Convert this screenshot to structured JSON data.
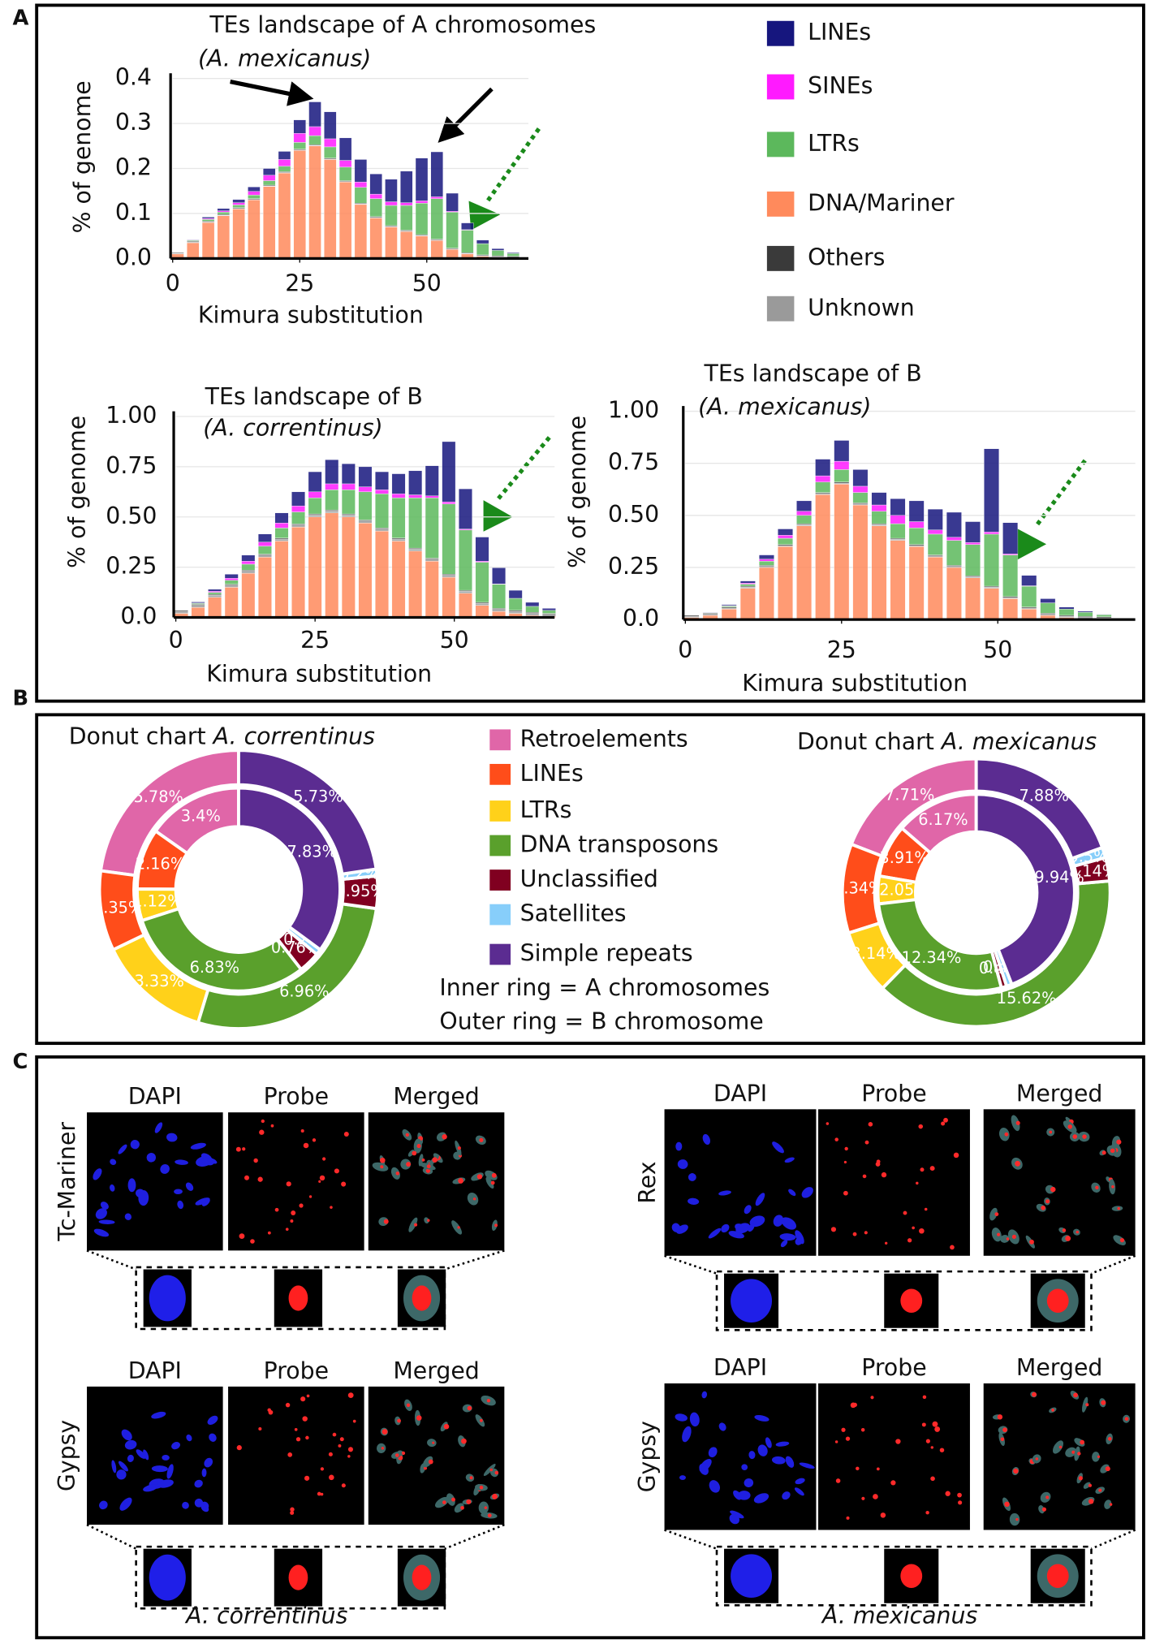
{
  "panels": [
    "A",
    "B",
    "C"
  ],
  "chart_data": [
    {
      "type": "bar",
      "title": "TEs landscape of A chromosomes",
      "subtitle": "(A. mexicanus)",
      "x_label": "Kimura substitution",
      "y_label": "% of genome",
      "x": [
        1,
        4,
        7,
        10,
        13,
        16,
        19,
        22,
        25,
        28,
        31,
        34,
        37,
        40,
        43,
        46,
        49,
        52,
        55,
        58,
        61,
        64,
        67
      ],
      "series": [
        {
          "name": "LINEs",
          "color": "#16167e",
          "values": [
            0,
            0.001,
            0.003,
            0.005,
            0.007,
            0.01,
            0.015,
            0.018,
            0.03,
            0.055,
            0.06,
            0.05,
            0.05,
            0.045,
            0.05,
            0.07,
            0.095,
            0.1,
            0.04,
            0.015,
            0.008,
            0.004,
            0.002
          ]
        },
        {
          "name": "SINEs",
          "color": "#ff1aff",
          "values": [
            0,
            0.001,
            0.002,
            0.003,
            0.005,
            0.008,
            0.012,
            0.015,
            0.02,
            0.02,
            0.018,
            0.015,
            0.012,
            0.01,
            0.008,
            0.006,
            0.005,
            0.004,
            0.002,
            0.001,
            0,
            0,
            0
          ]
        },
        {
          "name": "LTRs",
          "color": "#5cb85c",
          "values": [
            0,
            0.002,
            0.004,
            0.005,
            0.006,
            0.008,
            0.01,
            0.012,
            0.015,
            0.02,
            0.025,
            0.03,
            0.035,
            0.04,
            0.045,
            0.055,
            0.07,
            0.09,
            0.08,
            0.05,
            0.025,
            0.012,
            0.006
          ]
        },
        {
          "name": "DNA/Mariner",
          "color": "#ff8a5c",
          "values": [
            0.01,
            0.035,
            0.08,
            0.095,
            0.11,
            0.13,
            0.16,
            0.19,
            0.24,
            0.25,
            0.22,
            0.17,
            0.12,
            0.09,
            0.07,
            0.06,
            0.05,
            0.04,
            0.02,
            0.01,
            0.005,
            0.003,
            0.002
          ]
        },
        {
          "name": "Others",
          "color": "#3a3a3a",
          "values": [
            0.002,
            0.002,
            0.002,
            0.002,
            0.002,
            0.002,
            0.002,
            0.002,
            0.002,
            0.002,
            0.002,
            0.002,
            0.002,
            0.002,
            0.002,
            0.002,
            0.002,
            0.002,
            0.002,
            0.002,
            0.002,
            0.002,
            0.002
          ]
        },
        {
          "name": "Unknown",
          "color": "#9a9a9a",
          "values": [
            0.001,
            0.001,
            0.001,
            0.001,
            0.001,
            0.001,
            0.001,
            0.001,
            0.001,
            0.001,
            0.001,
            0.001,
            0.001,
            0.001,
            0.001,
            0.001,
            0.001,
            0.001,
            0.001,
            0.001,
            0.001,
            0.001,
            0.001
          ]
        }
      ],
      "xlim": [
        0,
        70
      ],
      "xticks": [
        0,
        25,
        50
      ],
      "ylim": [
        0,
        0.4
      ],
      "yticks": [
        {
          "value": 0,
          "label": "0.0"
        },
        0.1,
        0.2,
        0.3,
        0.4
      ],
      "grid": true
    },
    {
      "type": "bar",
      "title": "TEs landscape of B",
      "subtitle": "(A. correntinus)",
      "x_label": "Kimura substitution",
      "y_label": "% of genome",
      "x": [
        1,
        4,
        7,
        10,
        13,
        16,
        19,
        22,
        25,
        28,
        31,
        34,
        37,
        40,
        43,
        46,
        49,
        52,
        55,
        58,
        61,
        64,
        67
      ],
      "series": [
        {
          "values": [
            0,
            0.005,
            0.01,
            0.02,
            0.03,
            0.04,
            0.05,
            0.07,
            0.1,
            0.12,
            0.1,
            0.1,
            0.09,
            0.1,
            0.12,
            0.15,
            0.3,
            0.2,
            0.12,
            0.08,
            0.04,
            0.02,
            0.01
          ]
        },
        {
          "values": [
            0,
            0.002,
            0.005,
            0.01,
            0.015,
            0.02,
            0.025,
            0.03,
            0.03,
            0.03,
            0.03,
            0.025,
            0.02,
            0.02,
            0.015,
            0.01,
            0.01,
            0.005,
            0.005,
            0.002,
            0,
            0,
            0
          ]
        },
        {
          "values": [
            0,
            0.005,
            0.01,
            0.02,
            0.03,
            0.04,
            0.05,
            0.06,
            0.08,
            0.1,
            0.12,
            0.14,
            0.17,
            0.2,
            0.25,
            0.3,
            0.35,
            0.3,
            0.2,
            0.12,
            0.06,
            0.03,
            0.015
          ]
        },
        {
          "values": [
            0.02,
            0.05,
            0.1,
            0.15,
            0.22,
            0.3,
            0.38,
            0.45,
            0.5,
            0.52,
            0.5,
            0.47,
            0.43,
            0.38,
            0.33,
            0.28,
            0.2,
            0.12,
            0.06,
            0.03,
            0.02,
            0.01,
            0.005
          ]
        },
        {
          "values": [
            0.005,
            0.005,
            0.005,
            0.005,
            0.005,
            0.005,
            0.005,
            0.005,
            0.005,
            0.005,
            0.005,
            0.005,
            0.005,
            0.005,
            0.005,
            0.005,
            0.005,
            0.005,
            0.005,
            0.005,
            0.005,
            0.005,
            0.005
          ]
        },
        {
          "values": [
            0.01,
            0.01,
            0.01,
            0.01,
            0.01,
            0.01,
            0.01,
            0.01,
            0.01,
            0.01,
            0.01,
            0.01,
            0.01,
            0.01,
            0.01,
            0.01,
            0.01,
            0.01,
            0.01,
            0.01,
            0.01,
            0.01,
            0.01
          ]
        }
      ],
      "xlim": [
        0,
        68
      ],
      "xticks": [
        0,
        25,
        50
      ],
      "ylim": [
        0,
        1
      ],
      "yticks": [
        {
          "value": 0,
          "label": "0.0"
        },
        0.25,
        {
          "value": 0.5,
          "label": "0.50"
        },
        0.75,
        {
          "value": 1,
          "label": "1.00"
        }
      ],
      "grid": true
    },
    {
      "type": "bar",
      "title": "TEs landscape of B",
      "subtitle": "(A. mexicanus)",
      "x_label": "Kimura substitution",
      "y_label": "% of genome",
      "x": [
        1,
        4,
        7,
        10,
        13,
        16,
        19,
        22,
        25,
        28,
        31,
        34,
        37,
        40,
        43,
        46,
        49,
        52,
        55,
        58,
        61,
        64,
        67
      ],
      "series": [
        {
          "values": [
            0,
            0.002,
            0.005,
            0.01,
            0.02,
            0.03,
            0.05,
            0.08,
            0.1,
            0.08,
            0.06,
            0.08,
            0.1,
            0.1,
            0.12,
            0.1,
            0.4,
            0.15,
            0.05,
            0.02,
            0.01,
            0.005,
            0.002
          ]
        },
        {
          "values": [
            0,
            0,
            0.002,
            0.005,
            0.01,
            0.015,
            0.02,
            0.03,
            0.04,
            0.03,
            0.03,
            0.04,
            0.03,
            0.02,
            0.015,
            0.01,
            0.01,
            0.005,
            0.002,
            0,
            0,
            0,
            0
          ]
        },
        {
          "values": [
            0,
            0.002,
            0.005,
            0.01,
            0.02,
            0.03,
            0.04,
            0.05,
            0.06,
            0.05,
            0.06,
            0.07,
            0.08,
            0.1,
            0.12,
            0.15,
            0.25,
            0.2,
            0.1,
            0.05,
            0.03,
            0.02,
            0.01
          ]
        },
        {
          "values": [
            0.01,
            0.02,
            0.05,
            0.15,
            0.25,
            0.35,
            0.45,
            0.6,
            0.65,
            0.55,
            0.45,
            0.38,
            0.35,
            0.3,
            0.25,
            0.2,
            0.15,
            0.1,
            0.05,
            0.02,
            0.01,
            0.005,
            0.003
          ]
        },
        {
          "values": [
            0.005,
            0.005,
            0.005,
            0.005,
            0.005,
            0.005,
            0.005,
            0.005,
            0.005,
            0.005,
            0.005,
            0.005,
            0.005,
            0.005,
            0.005,
            0.005,
            0.005,
            0.005,
            0.005,
            0.005,
            0.005,
            0.005,
            0.005
          ]
        },
        {
          "values": [
            0.005,
            0.005,
            0.005,
            0.005,
            0.005,
            0.005,
            0.005,
            0.005,
            0.005,
            0.005,
            0.005,
            0.005,
            0.005,
            0.005,
            0.005,
            0.005,
            0.005,
            0.005,
            0.005,
            0.005,
            0.005,
            0.005,
            0.005
          ]
        }
      ],
      "xlim": [
        0,
        72
      ],
      "xticks": [
        0,
        25,
        50
      ],
      "ylim": [
        0,
        1
      ],
      "yticks": [
        {
          "value": 0,
          "label": "0.0"
        },
        0.25,
        {
          "value": 0.5,
          "label": "0.50"
        },
        0.75,
        {
          "value": 1,
          "label": "1.00"
        }
      ],
      "grid": true
    },
    {
      "type": "donut",
      "title": "Donut chart",
      "species": "A. correntinus",
      "inner": {
        "values": [
          3.4,
          2.16,
          1.12,
          6.83,
          0.76,
          0.2,
          7.83
        ],
        "value_labels": [
          "3.4%",
          "2.16%",
          "1.12%",
          "6.83%",
          "0.76%",
          "0.2%",
          "7.83%"
        ]
      },
      "outer": {
        "values": [
          5.78,
          2.35,
          3.33,
          6.96,
          0.95,
          0.2,
          5.73
        ],
        "value_labels": [
          "5.78%",
          "2.35%",
          "3.33%",
          "6.96%",
          "0.95%",
          "0.2%",
          "5.73%"
        ]
      }
    },
    {
      "type": "donut",
      "title": "Donut chart",
      "species": "A. mexicanus",
      "inner": {
        "values": [
          6.17,
          3.91,
          2.05,
          12.34,
          0.4,
          0.4,
          19.94
        ],
        "value_labels": [
          "6.17%",
          "3.91%",
          "2.05",
          "12.34%",
          "0.4%",
          "0.4%",
          "19.94%"
        ]
      },
      "outer": {
        "values": [
          7.71,
          4.34,
          3.14,
          15.62,
          1.14,
          0.5,
          7.88
        ],
        "value_labels": [
          "7.71%",
          "4.34%",
          "3.14%",
          "15.62%",
          "1.14%",
          "0.5%",
          "7.88%"
        ]
      }
    }
  ],
  "donut_legend": {
    "categories": [
      "Retroelements",
      "LINEs",
      "LTRs",
      "DNA transposons",
      "Unclassified",
      "Satellites",
      "Simple repeats"
    ],
    "colors": [
      "#e066a8",
      "#ff4d1a",
      "#ffd11a",
      "#5aa02c",
      "#800020",
      "#87cefa",
      "#5b2c91"
    ],
    "notes": [
      "Inner ring =  A chromosomes",
      "Outer ring = B chromosome"
    ]
  },
  "panel_c": {
    "columns": [
      "DAPI",
      "Probe",
      "Merged"
    ],
    "groups": [
      {
        "species": "A. correntinus",
        "rows": [
          "Tc-Mariner",
          "Gypsy"
        ]
      },
      {
        "species": "A. mexicanus",
        "rows": [
          "Rex",
          "Gypsy"
        ]
      }
    ]
  }
}
